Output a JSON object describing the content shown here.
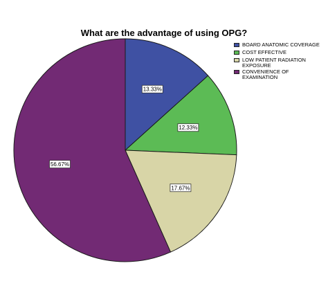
{
  "chart_data": {
    "type": "pie",
    "title": "What are the advantage of using OPG?",
    "legend_position": "top-right",
    "slices": [
      {
        "label": "BOARD ANATOMIC COVERAGE",
        "value": 13.33,
        "display": "13.33%",
        "color": "#3f51a3"
      },
      {
        "label": "COST EFFECTIVE",
        "value": 12.33,
        "display": "12.33%",
        "color": "#5cbb55"
      },
      {
        "label": "LOW PATIENT RADIATION EXPOSURE",
        "value": 17.67,
        "display": "17.67%",
        "color": "#d8d5a7"
      },
      {
        "label": "CONVENIENCE OF EXAMINATION",
        "value": 56.67,
        "display": "56.67%",
        "color": "#722a74"
      }
    ]
  }
}
